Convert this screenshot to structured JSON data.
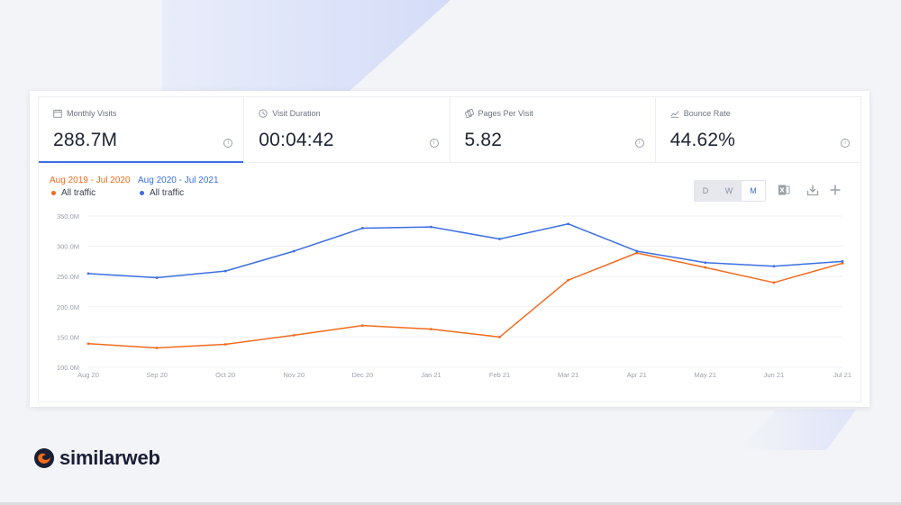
{
  "metrics": [
    {
      "label": "Monthly Visits",
      "value": "288.7M",
      "icon": "calendar-icon"
    },
    {
      "label": "Visit Duration",
      "value": "00:04:42",
      "icon": "clock-icon"
    },
    {
      "label": "Pages Per Visit",
      "value": "5.82",
      "icon": "pages-icon"
    },
    {
      "label": "Bounce Rate",
      "value": "44.62%",
      "icon": "trend-icon"
    }
  ],
  "info_glyph": "i",
  "legend": [
    {
      "range": "Aug 2019 - Jul 2020",
      "series": "All traffic",
      "color": "#f26b1d"
    },
    {
      "range": "Aug 2020 - Jul 2021",
      "series": "All traffic",
      "color": "#3b6fe0"
    }
  ],
  "granularity": {
    "options": [
      "D",
      "W",
      "M"
    ],
    "selected": "M"
  },
  "toolbar": {
    "icons": [
      "excel-icon",
      "download-icon",
      "add-icon"
    ]
  },
  "colors": {
    "accent": "#3b6fe0",
    "orange": "#f26b1d",
    "brand_dark": "#1a1f36"
  },
  "chart_data": {
    "type": "line",
    "x": [
      "Aug 20",
      "Sep 20",
      "Oct 20",
      "Nov 20",
      "Dec 20",
      "Jan 21",
      "Feb 21",
      "Mar 21",
      "Apr 21",
      "May 21",
      "Jun 21",
      "Jul 21"
    ],
    "y_ticks": [
      "350.0M",
      "300.0M",
      "250.0M",
      "200.0M",
      "150.0M",
      "100.0M"
    ],
    "ylim": [
      100,
      350
    ],
    "y_unit": "M",
    "grid": true,
    "legend_position": "top-left",
    "series": [
      {
        "name": "Aug 2019 - Jul 2020",
        "color": "#f26b1d",
        "values": [
          139,
          132,
          138,
          153,
          169,
          163,
          150,
          244,
          289,
          265,
          240,
          272
        ]
      },
      {
        "name": "Aug 2020 - Jul 2021",
        "color": "#3b6fe0",
        "values": [
          255,
          248,
          259,
          292,
          330,
          332,
          312,
          337,
          292,
          273,
          267,
          275
        ]
      }
    ]
  },
  "brand": {
    "name": "similarweb"
  }
}
